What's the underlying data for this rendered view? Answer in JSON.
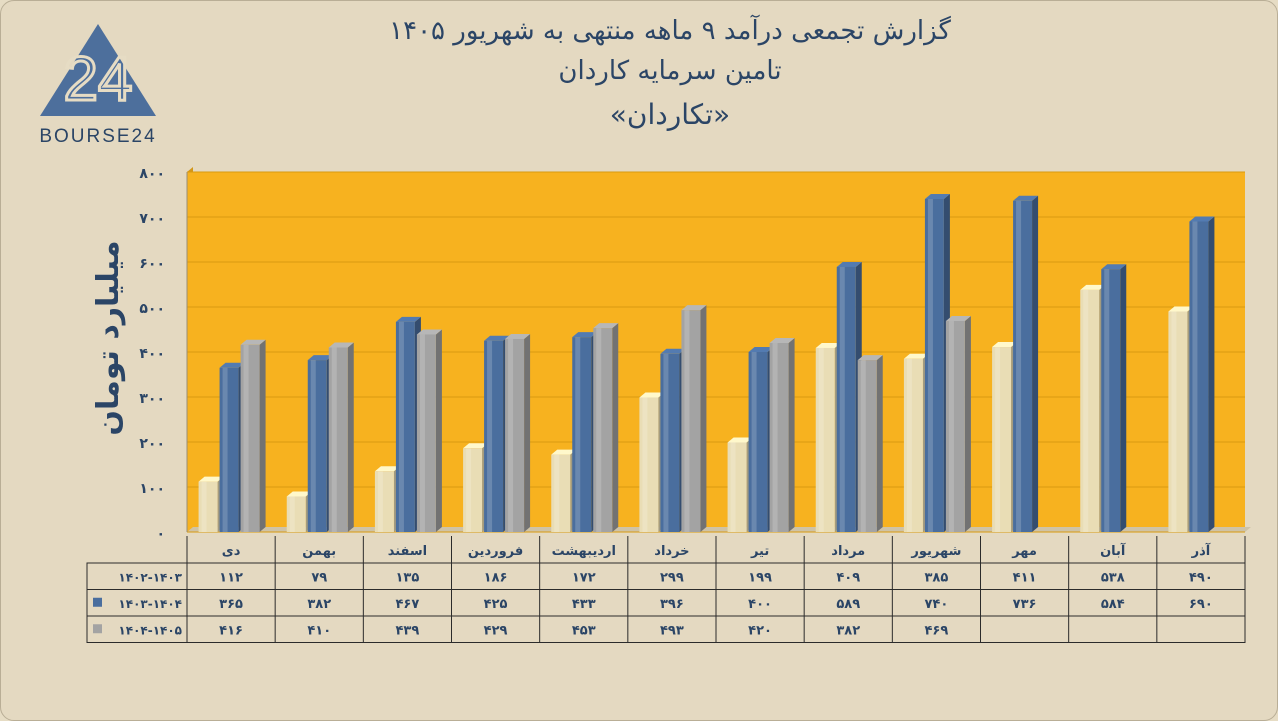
{
  "logo": {
    "text": "BOURSE24",
    "icon": "bourse24-logo"
  },
  "header": {
    "line1": "گزارش تجمعی درآمد ۹ ماهه منتهی به شهریور ۱۴۰۵",
    "line2": "تامین سرمایه کاردان",
    "line3": "«تکاردان»"
  },
  "colors": {
    "plot_bg": "#f7b21f",
    "series1": "#e9ddb5",
    "series2": "#4a6e9e",
    "series3": "#a3a3a3",
    "text": "#2b4566"
  },
  "chart_data": {
    "type": "bar",
    "ylabel": "میلیارد تومان",
    "ylim": [
      0,
      800
    ],
    "yticks": [
      "۰",
      "۱۰۰",
      "۲۰۰",
      "۳۰۰",
      "۴۰۰",
      "۵۰۰",
      "۶۰۰",
      "۷۰۰",
      "۸۰۰"
    ],
    "categories": [
      "دی",
      "بهمن",
      "اسفند",
      "فروردین",
      "اردیبهشت",
      "خرداد",
      "تیر",
      "مرداد",
      "شهریور",
      "مهر",
      "آبان",
      "آذر"
    ],
    "series": [
      {
        "name": "۱۴۰۲-۱۴۰۳",
        "values": [
          112,
          79,
          135,
          186,
          172,
          299,
          199,
          409,
          385,
          411,
          538,
          490
        ],
        "labels": [
          "۱۱۲",
          "۷۹",
          "۱۳۵",
          "۱۸۶",
          "۱۷۲",
          "۲۹۹",
          "۱۹۹",
          "۴۰۹",
          "۳۸۵",
          "۴۱۱",
          "۵۳۸",
          "۴۹۰"
        ]
      },
      {
        "name": "۱۴۰۳-۱۴۰۴",
        "values": [
          365,
          382,
          467,
          425,
          433,
          396,
          400,
          589,
          740,
          736,
          584,
          690
        ],
        "labels": [
          "۳۶۵",
          "۳۸۲",
          "۴۶۷",
          "۴۲۵",
          "۴۳۳",
          "۳۹۶",
          "۴۰۰",
          "۵۸۹",
          "۷۴۰",
          "۷۳۶",
          "۵۸۴",
          "۶۹۰"
        ]
      },
      {
        "name": "۱۴۰۴-۱۴۰۵",
        "values": [
          416,
          410,
          439,
          429,
          453,
          493,
          420,
          382,
          469,
          null,
          null,
          null
        ],
        "labels": [
          "۴۱۶",
          "۴۱۰",
          "۴۳۹",
          "۴۲۹",
          "۴۵۳",
          "۴۹۳",
          "۴۲۰",
          "۳۸۲",
          "۴۶۹",
          "",
          "",
          ""
        ]
      }
    ],
    "data_table": true,
    "grid": true
  }
}
